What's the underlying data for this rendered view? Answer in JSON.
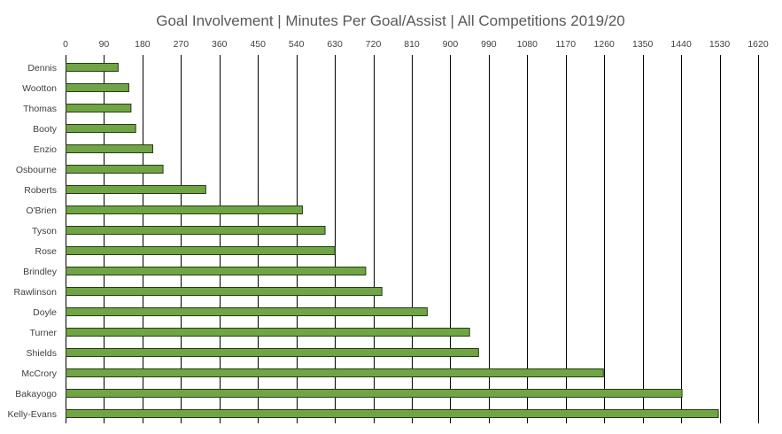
{
  "chart_data": {
    "type": "bar",
    "orientation": "horizontal",
    "title": "Goal Involvement | Minutes Per Goal/Assist | All Competitions 2019/20",
    "xlabel": "",
    "ylabel": "",
    "xlim": [
      0,
      1620
    ],
    "x_ticks": [
      0,
      90,
      180,
      270,
      360,
      450,
      540,
      630,
      720,
      810,
      900,
      990,
      1080,
      1170,
      1260,
      1350,
      1440,
      1530,
      1620
    ],
    "x_axis_position": "top",
    "grid": true,
    "legend": "none",
    "bar_color": "#70a444",
    "categories": [
      "Dennis",
      "Wootton",
      "Thomas",
      "Booty",
      "Enzio",
      "Osbourne",
      "Roberts",
      "O'Brien",
      "Tyson",
      "Rose",
      "Brindley",
      "Rawlinson",
      "Doyle",
      "Turner",
      "Shields",
      "McCrory",
      "Bakayogo",
      "Kelly-Evans"
    ],
    "values": [
      122,
      147,
      152,
      163,
      203,
      227,
      327,
      553,
      606,
      629,
      701,
      739,
      845,
      944,
      965,
      1257,
      1441,
      1526
    ]
  }
}
